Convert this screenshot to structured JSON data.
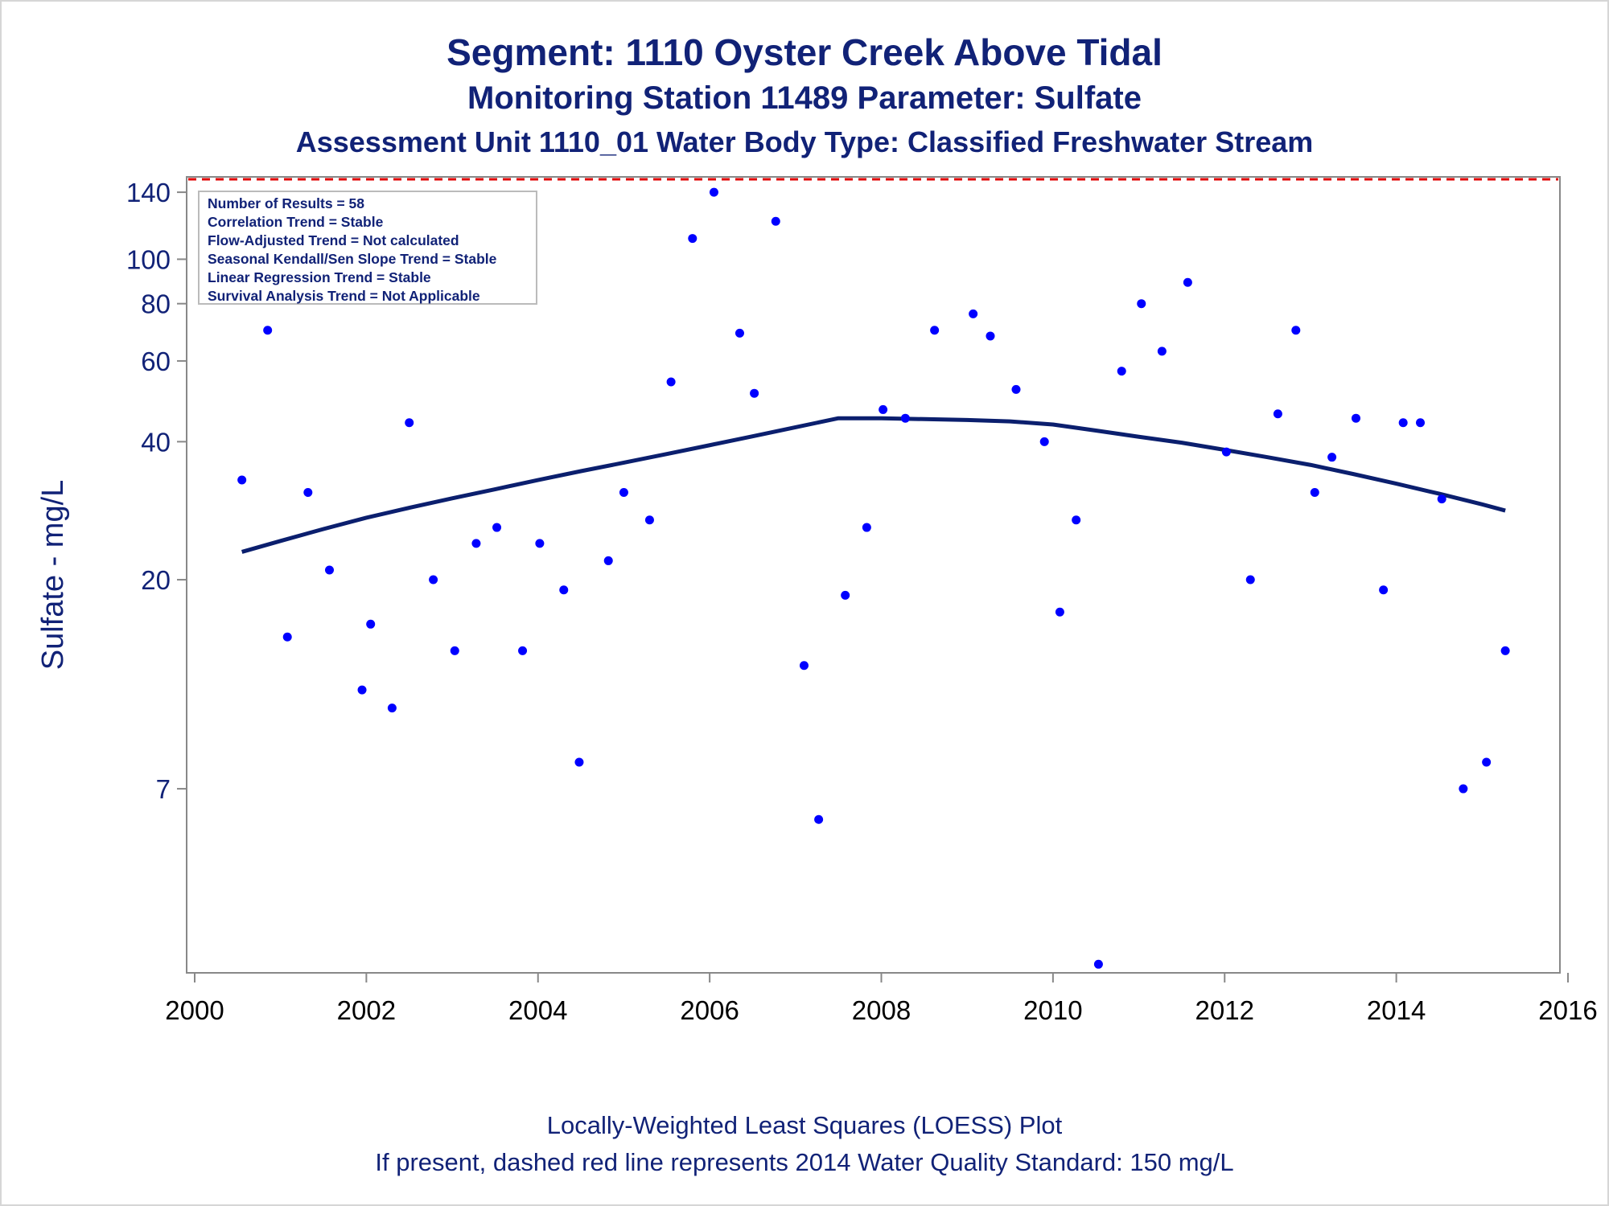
{
  "titles": {
    "line1": "Segment: 1110  Oyster Creek Above Tidal",
    "line2": "Monitoring Station 11489 Parameter: Sulfate",
    "line3": "Assessment Unit 1110_01   Water Body Type: Classified Freshwater Stream"
  },
  "footnotes": {
    "line1": "Locally-Weighted Least Squares (LOESS) Plot",
    "line2": "If present, dashed red line represents 2014 Water Quality Standard: 150   mg/L"
  },
  "colors": {
    "text": "#112277",
    "points": "#0000ff",
    "loess": "#0b1f6e",
    "standard": "#e00000",
    "axis": "#888888"
  },
  "chart_data": {
    "type": "scatter",
    "ylabel": "Sulfate - mg/L",
    "xlabel": "",
    "y_scale": "log",
    "xlim": [
      2000,
      2016
    ],
    "ylim": [
      2.8,
      150
    ],
    "x_ticks": [
      2000,
      2002,
      2004,
      2006,
      2008,
      2010,
      2012,
      2014,
      2016
    ],
    "y_ticks": [
      7,
      20,
      40,
      60,
      80,
      100,
      140
    ],
    "grid": false,
    "standard_line": {
      "value": 150,
      "style": "dashed",
      "label": "2014 Water Quality Standard: 150 mg/L"
    },
    "stats_box": [
      "Number of Results = 58",
      "Correlation Trend = Stable",
      "Flow-Adjusted Trend = Not calculated",
      "Seasonal Kendall/Sen Slope Trend = Stable",
      "Linear Regression Trend = Stable",
      "Survival Analysis Trend = Not Applicable"
    ],
    "points": [
      {
        "x": 2000.55,
        "y": 33
      },
      {
        "x": 2000.85,
        "y": 70
      },
      {
        "x": 2001.08,
        "y": 15
      },
      {
        "x": 2001.32,
        "y": 31
      },
      {
        "x": 2001.57,
        "y": 21
      },
      {
        "x": 2001.95,
        "y": 11.5
      },
      {
        "x": 2002.05,
        "y": 16
      },
      {
        "x": 2002.3,
        "y": 10.5
      },
      {
        "x": 2002.5,
        "y": 44
      },
      {
        "x": 2002.78,
        "y": 20
      },
      {
        "x": 2003.03,
        "y": 14
      },
      {
        "x": 2003.28,
        "y": 24
      },
      {
        "x": 2003.52,
        "y": 26
      },
      {
        "x": 2003.82,
        "y": 14
      },
      {
        "x": 2004.02,
        "y": 24
      },
      {
        "x": 2004.3,
        "y": 19
      },
      {
        "x": 2004.48,
        "y": 8
      },
      {
        "x": 2004.82,
        "y": 22
      },
      {
        "x": 2005.0,
        "y": 31
      },
      {
        "x": 2005.3,
        "y": 27
      },
      {
        "x": 2005.55,
        "y": 54
      },
      {
        "x": 2005.8,
        "y": 111
      },
      {
        "x": 2006.05,
        "y": 140
      },
      {
        "x": 2006.35,
        "y": 69
      },
      {
        "x": 2006.52,
        "y": 51
      },
      {
        "x": 2006.77,
        "y": 121
      },
      {
        "x": 2007.1,
        "y": 13
      },
      {
        "x": 2007.27,
        "y": 6
      },
      {
        "x": 2007.58,
        "y": 18.5
      },
      {
        "x": 2007.83,
        "y": 26
      },
      {
        "x": 2008.02,
        "y": 47
      },
      {
        "x": 2008.28,
        "y": 45
      },
      {
        "x": 2008.62,
        "y": 70
      },
      {
        "x": 2009.07,
        "y": 76
      },
      {
        "x": 2009.27,
        "y": 68
      },
      {
        "x": 2009.57,
        "y": 52
      },
      {
        "x": 2009.9,
        "y": 40
      },
      {
        "x": 2010.08,
        "y": 17
      },
      {
        "x": 2010.27,
        "y": 27
      },
      {
        "x": 2010.53,
        "y": 2.9
      },
      {
        "x": 2010.8,
        "y": 57
      },
      {
        "x": 2011.03,
        "y": 80
      },
      {
        "x": 2011.27,
        "y": 63
      },
      {
        "x": 2011.57,
        "y": 89
      },
      {
        "x": 2012.02,
        "y": 38
      },
      {
        "x": 2012.3,
        "y": 20
      },
      {
        "x": 2012.62,
        "y": 46
      },
      {
        "x": 2012.83,
        "y": 70
      },
      {
        "x": 2013.05,
        "y": 31
      },
      {
        "x": 2013.25,
        "y": 37
      },
      {
        "x": 2013.53,
        "y": 45
      },
      {
        "x": 2013.85,
        "y": 19
      },
      {
        "x": 2014.08,
        "y": 44
      },
      {
        "x": 2014.28,
        "y": 44
      },
      {
        "x": 2014.53,
        "y": 30
      },
      {
        "x": 2014.78,
        "y": 7
      },
      {
        "x": 2015.05,
        "y": 8
      },
      {
        "x": 2015.27,
        "y": 14
      }
    ],
    "loess": [
      {
        "x": 2000.55,
        "y": 23.0
      },
      {
        "x": 2001.0,
        "y": 24.3
      },
      {
        "x": 2001.5,
        "y": 25.8
      },
      {
        "x": 2002.0,
        "y": 27.3
      },
      {
        "x": 2002.5,
        "y": 28.7
      },
      {
        "x": 2003.0,
        "y": 30.1
      },
      {
        "x": 2003.5,
        "y": 31.5
      },
      {
        "x": 2004.0,
        "y": 33.0
      },
      {
        "x": 2004.5,
        "y": 34.5
      },
      {
        "x": 2005.0,
        "y": 36.0
      },
      {
        "x": 2005.5,
        "y": 37.6
      },
      {
        "x": 2006.0,
        "y": 39.3
      },
      {
        "x": 2006.5,
        "y": 41.1
      },
      {
        "x": 2007.0,
        "y": 43.0
      },
      {
        "x": 2007.5,
        "y": 45.0
      },
      {
        "x": 2008.0,
        "y": 45.0
      },
      {
        "x": 2008.5,
        "y": 44.8
      },
      {
        "x": 2009.0,
        "y": 44.6
      },
      {
        "x": 2009.5,
        "y": 44.3
      },
      {
        "x": 2010.0,
        "y": 43.6
      },
      {
        "x": 2010.5,
        "y": 42.3
      },
      {
        "x": 2011.0,
        "y": 41.0
      },
      {
        "x": 2011.5,
        "y": 39.8
      },
      {
        "x": 2012.0,
        "y": 38.4
      },
      {
        "x": 2012.5,
        "y": 37.0
      },
      {
        "x": 2013.0,
        "y": 35.6
      },
      {
        "x": 2013.5,
        "y": 34.0
      },
      {
        "x": 2014.0,
        "y": 32.4
      },
      {
        "x": 2014.5,
        "y": 30.8
      },
      {
        "x": 2015.0,
        "y": 29.2
      },
      {
        "x": 2015.27,
        "y": 28.3
      }
    ]
  }
}
